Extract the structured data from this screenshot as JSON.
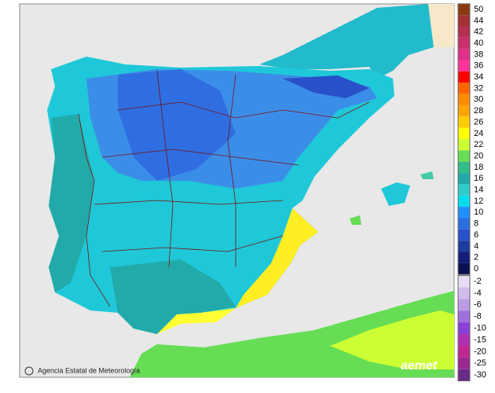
{
  "map": {
    "credit": "Agencia Estatal de Meteorología",
    "logo": "aemet",
    "legend": {
      "positive": [
        {
          "label": "50",
          "color": "#8b3a10"
        },
        {
          "label": "44",
          "color": "#a33030"
        },
        {
          "label": "42",
          "color": "#b43050"
        },
        {
          "label": "40",
          "color": "#c8306c"
        },
        {
          "label": "38",
          "color": "#e0308a"
        },
        {
          "label": "36",
          "color": "#ff3399"
        },
        {
          "label": "34",
          "color": "#ff0000"
        },
        {
          "label": "32",
          "color": "#ff6600"
        },
        {
          "label": "30",
          "color": "#ff8c00"
        },
        {
          "label": "28",
          "color": "#ffa500"
        },
        {
          "label": "26",
          "color": "#ffcc00"
        },
        {
          "label": "24",
          "color": "#ffff00"
        },
        {
          "label": "22",
          "color": "#ccff33"
        },
        {
          "label": "20",
          "color": "#66dd55"
        },
        {
          "label": "18",
          "color": "#33bb88"
        },
        {
          "label": "16",
          "color": "#22aaaa"
        },
        {
          "label": "14",
          "color": "#33cccc"
        },
        {
          "label": "12",
          "color": "#00ddee"
        },
        {
          "label": "10",
          "color": "#1e90ff"
        },
        {
          "label": "8",
          "color": "#2a6ee0"
        },
        {
          "label": "6",
          "color": "#2850c8"
        },
        {
          "label": "4",
          "color": "#1e3ca0"
        },
        {
          "label": "2",
          "color": "#141e78"
        },
        {
          "label": "0",
          "color": "#0a1050"
        }
      ],
      "negative": [
        {
          "label": "-2",
          "color": "#e8dcf4"
        },
        {
          "label": "-4",
          "color": "#d2bcec"
        },
        {
          "label": "-6",
          "color": "#bc9ce4"
        },
        {
          "label": "-8",
          "color": "#a070dc"
        },
        {
          "label": "-10",
          "color": "#8a40d8"
        },
        {
          "label": "-15",
          "color": "#b030b0"
        },
        {
          "label": "-20",
          "color": "#c02890"
        },
        {
          "label": "-25",
          "color": "#9a2890"
        },
        {
          "label": "-30",
          "color": "#6a2a8a"
        }
      ]
    }
  }
}
